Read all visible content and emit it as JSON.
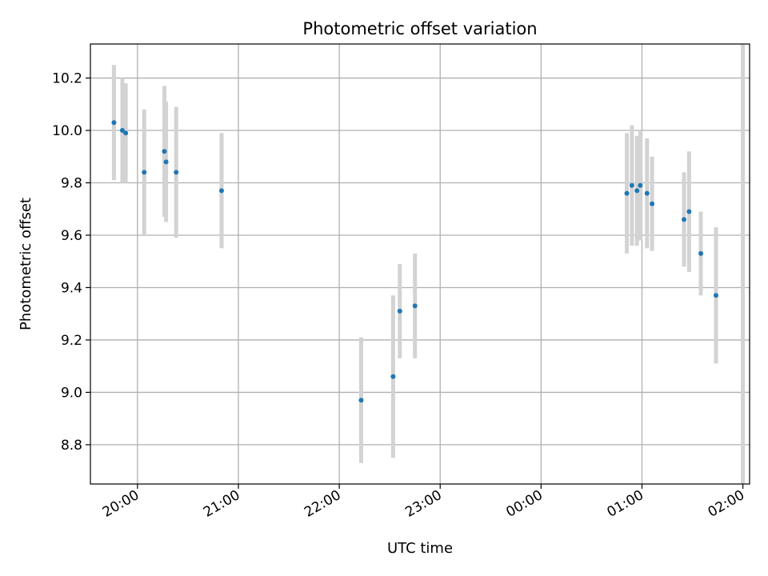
{
  "chart_data": {
    "type": "scatter",
    "title": "Photometric offset variation",
    "xlabel": "UTC time",
    "ylabel": "Photometric offset",
    "xlim": [
      "19:32",
      "02:04"
    ],
    "ylim": [
      8.65,
      10.33
    ],
    "grid": true,
    "x_ticks": [
      "20:00",
      "21:00",
      "22:00",
      "23:00",
      "00:00",
      "01:00",
      "02:00"
    ],
    "y_ticks": [
      "8.8",
      "9.0",
      "9.2",
      "9.4",
      "9.6",
      "9.8",
      "10.0",
      "10.2"
    ],
    "colors": {
      "marker": "#1f77b4",
      "errorbar": "#d3d3d3",
      "grid": "#b0b0b0"
    },
    "points": [
      {
        "x": "19:46",
        "y": 10.03,
        "yerr": 0.22
      },
      {
        "x": "19:51",
        "y": 10.0,
        "yerr": 0.2
      },
      {
        "x": "19:53",
        "y": 9.99,
        "yerr": 0.19
      },
      {
        "x": "20:04",
        "y": 9.84,
        "yerr": 0.24
      },
      {
        "x": "20:16",
        "y": 9.92,
        "yerr": 0.25
      },
      {
        "x": "20:17",
        "y": 9.88,
        "yerr": 0.23
      },
      {
        "x": "20:23",
        "y": 9.84,
        "yerr": 0.25
      },
      {
        "x": "20:50",
        "y": 9.77,
        "yerr": 0.22
      },
      {
        "x": "22:13",
        "y": 8.97,
        "yerr": 0.24
      },
      {
        "x": "22:32",
        "y": 9.06,
        "yerr": 0.31
      },
      {
        "x": "22:36",
        "y": 9.31,
        "yerr": 0.18
      },
      {
        "x": "22:45",
        "y": 9.33,
        "yerr": 0.2
      },
      {
        "x": "00:51",
        "y": 9.76,
        "yerr": 0.23
      },
      {
        "x": "00:54",
        "y": 9.79,
        "yerr": 0.23
      },
      {
        "x": "00:57",
        "y": 9.77,
        "yerr": 0.21
      },
      {
        "x": "00:59",
        "y": 9.79,
        "yerr": 0.21
      },
      {
        "x": "01:03",
        "y": 9.76,
        "yerr": 0.21
      },
      {
        "x": "01:06",
        "y": 9.72,
        "yerr": 0.18
      },
      {
        "x": "01:25",
        "y": 9.66,
        "yerr": 0.18
      },
      {
        "x": "01:28",
        "y": 9.69,
        "yerr": 0.23
      },
      {
        "x": "01:35",
        "y": 9.53,
        "yerr": 0.16
      },
      {
        "x": "01:44",
        "y": 9.37,
        "yerr": 0.26
      },
      {
        "x": "02:00",
        "y": null,
        "yerr_range": [
          8.65,
          10.33
        ]
      }
    ]
  }
}
